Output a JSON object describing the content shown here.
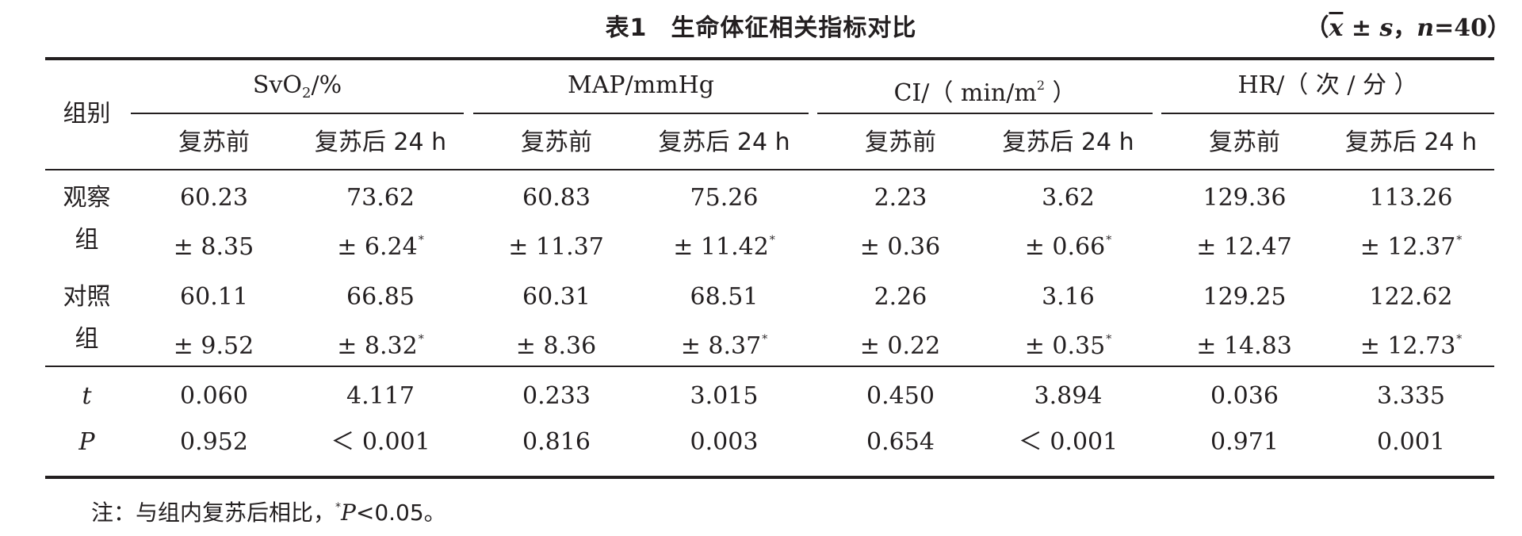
{
  "table": {
    "title_label": "表1",
    "title_text": "生命体征相关指标对比",
    "stat_note": {
      "open": "（",
      "mean": "x",
      "pm": " ± ",
      "sd": "s",
      "comma": "，",
      "n_label": "n",
      "n_value": "=40",
      "close": "）"
    },
    "group_col_header": "组别",
    "groups": [
      {
        "name_base": "SvO",
        "name_sub": "2",
        "name_tail": "/%",
        "name_sup": "",
        "name_end": ""
      },
      {
        "name_base": "MAP/mmHg",
        "name_sub": "",
        "name_tail": "",
        "name_sup": "",
        "name_end": ""
      },
      {
        "name_base": "CI/（ min/m",
        "name_sub": "",
        "name_tail": "",
        "name_sup": "2",
        "name_end": " ）"
      },
      {
        "name_base": "HR/（ 次 / 分 ）",
        "name_sub": "",
        "name_tail": "",
        "name_sup": "",
        "name_end": ""
      }
    ],
    "subheaders": [
      "复苏前",
      "复苏后 24 h",
      "复苏前",
      "复苏后 24 h",
      "复苏前",
      "复苏后 24 h",
      "复苏前",
      "复苏后 24 h"
    ],
    "rows": [
      {
        "label_1": "观察",
        "label_2": "组",
        "means": [
          "60.23",
          "73.62",
          "60.83",
          "75.26",
          "2.23",
          "3.62",
          "129.36",
          "113.26"
        ],
        "sds": [
          "± 8.35",
          "± 6.24",
          "± 11.37",
          "± 11.42",
          "± 0.36",
          "± 0.66",
          "± 12.47",
          "± 12.37"
        ],
        "stars": [
          "",
          "*",
          "",
          "*",
          "",
          "*",
          "",
          "*"
        ]
      },
      {
        "label_1": "对照",
        "label_2": "组",
        "means": [
          "60.11",
          "66.85",
          "60.31",
          "68.51",
          "2.26",
          "3.16",
          "129.25",
          "122.62"
        ],
        "sds": [
          "± 9.52",
          "± 8.32",
          "± 8.36",
          "± 8.37",
          "± 0.22",
          "± 0.35",
          "± 14.83",
          "± 12.73"
        ],
        "stars": [
          "",
          "*",
          "",
          "*",
          "",
          "*",
          "",
          "*"
        ]
      }
    ],
    "stats": [
      {
        "label": "t",
        "values": [
          "0.060",
          "4.117",
          "0.233",
          "3.015",
          "0.450",
          "3.894",
          "0.036",
          "3.335"
        ]
      },
      {
        "label": "P",
        "values": [
          "0.952",
          "＜ 0.001",
          "0.816",
          "0.003",
          "0.654",
          "＜ 0.001",
          "0.971",
          "0.001"
        ]
      }
    ],
    "footnote": {
      "prefix": "注：与组内复苏后相比，",
      "star": "*",
      "p": "P",
      "suffix": "<0.05。"
    }
  }
}
